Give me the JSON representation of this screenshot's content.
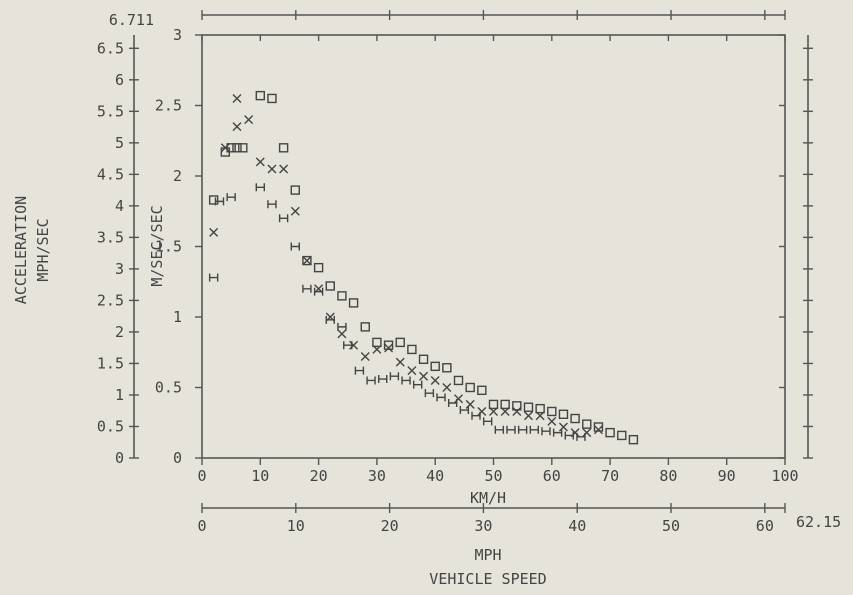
{
  "chart_data": {
    "type": "scatter",
    "title": "",
    "xlabel": "KM/H",
    "ylabel": "M/SEC/SEC",
    "xlim": [
      0,
      100
    ],
    "ylim": [
      0,
      3
    ],
    "x_ticks": [
      "0",
      "10",
      "20",
      "30",
      "40",
      "50",
      "60",
      "70",
      "80",
      "90",
      "100"
    ],
    "y_ticks": [
      "0",
      "0.5",
      "1",
      "1.5",
      "2",
      "2.5",
      "3"
    ],
    "secondary_x_axis": {
      "label": "MPH",
      "range": [
        0,
        62.15
      ],
      "max_label": "62.15",
      "ticks": [
        "0",
        "10",
        "20",
        "30",
        "40",
        "50",
        "60"
      ]
    },
    "secondary_y_axis": {
      "label_line1": "ACCELERATION",
      "label_line2": "MPH/SEC",
      "range": [
        0,
        6.711
      ],
      "max_label": "6.711",
      "ticks": [
        "0",
        "0.5",
        "1",
        "1.5",
        "2",
        "2.5",
        "3",
        "3.5",
        "4",
        "4.5",
        "5",
        "5.5",
        "6",
        "6.5"
      ]
    },
    "caption": "VEHICLE SPEED",
    "series": [
      {
        "marker": "square",
        "points": [
          [
            2,
            1.83
          ],
          [
            4,
            2.17
          ],
          [
            5,
            2.2
          ],
          [
            6,
            2.2
          ],
          [
            7,
            2.2
          ],
          [
            10,
            2.57
          ],
          [
            12,
            2.55
          ],
          [
            14,
            2.2
          ],
          [
            16,
            1.9
          ],
          [
            18,
            1.4
          ],
          [
            20,
            1.35
          ],
          [
            22,
            1.22
          ],
          [
            24,
            1.15
          ],
          [
            26,
            1.1
          ],
          [
            28,
            0.93
          ],
          [
            30,
            0.82
          ],
          [
            32,
            0.8
          ],
          [
            34,
            0.82
          ],
          [
            36,
            0.77
          ],
          [
            38,
            0.7
          ],
          [
            40,
            0.65
          ],
          [
            42,
            0.64
          ],
          [
            44,
            0.55
          ],
          [
            46,
            0.5
          ],
          [
            48,
            0.48
          ],
          [
            50,
            0.38
          ],
          [
            52,
            0.38
          ],
          [
            54,
            0.37
          ],
          [
            56,
            0.36
          ],
          [
            58,
            0.35
          ],
          [
            60,
            0.33
          ],
          [
            62,
            0.31
          ],
          [
            64,
            0.28
          ],
          [
            66,
            0.24
          ],
          [
            68,
            0.22
          ],
          [
            70,
            0.18
          ],
          [
            72,
            0.16
          ],
          [
            74,
            0.13
          ]
        ]
      },
      {
        "marker": "x",
        "points": [
          [
            2,
            1.6
          ],
          [
            4,
            2.2
          ],
          [
            6,
            2.55
          ],
          [
            6,
            2.35
          ],
          [
            8,
            2.4
          ],
          [
            10,
            2.1
          ],
          [
            12,
            2.05
          ],
          [
            14,
            2.05
          ],
          [
            16,
            1.75
          ],
          [
            18,
            1.4
          ],
          [
            20,
            1.2
          ],
          [
            22,
            1.0
          ],
          [
            24,
            0.88
          ],
          [
            26,
            0.8
          ],
          [
            28,
            0.72
          ],
          [
            30,
            0.77
          ],
          [
            32,
            0.78
          ],
          [
            34,
            0.68
          ],
          [
            36,
            0.62
          ],
          [
            38,
            0.58
          ],
          [
            40,
            0.55
          ],
          [
            42,
            0.5
          ],
          [
            44,
            0.42
          ],
          [
            46,
            0.38
          ],
          [
            48,
            0.33
          ],
          [
            50,
            0.33
          ],
          [
            52,
            0.33
          ],
          [
            54,
            0.33
          ],
          [
            56,
            0.3
          ],
          [
            58,
            0.3
          ],
          [
            60,
            0.26
          ],
          [
            62,
            0.22
          ],
          [
            64,
            0.18
          ],
          [
            66,
            0.18
          ],
          [
            68,
            0.2
          ]
        ]
      },
      {
        "marker": "h",
        "points": [
          [
            2,
            1.28
          ],
          [
            3,
            1.82
          ],
          [
            5,
            1.85
          ],
          [
            10,
            1.92
          ],
          [
            12,
            1.8
          ],
          [
            14,
            1.7
          ],
          [
            16,
            1.5
          ],
          [
            18,
            1.2
          ],
          [
            20,
            1.18
          ],
          [
            22,
            0.98
          ],
          [
            24,
            0.93
          ],
          [
            25,
            0.8
          ],
          [
            27,
            0.62
          ],
          [
            29,
            0.55
          ],
          [
            31,
            0.56
          ],
          [
            33,
            0.58
          ],
          [
            35,
            0.55
          ],
          [
            37,
            0.52
          ],
          [
            39,
            0.46
          ],
          [
            41,
            0.43
          ],
          [
            43,
            0.39
          ],
          [
            45,
            0.34
          ],
          [
            47,
            0.3
          ],
          [
            49,
            0.26
          ],
          [
            51,
            0.2
          ],
          [
            53,
            0.2
          ],
          [
            55,
            0.2
          ],
          [
            57,
            0.2
          ],
          [
            59,
            0.19
          ],
          [
            61,
            0.18
          ],
          [
            63,
            0.16
          ],
          [
            65,
            0.15
          ]
        ]
      }
    ]
  }
}
